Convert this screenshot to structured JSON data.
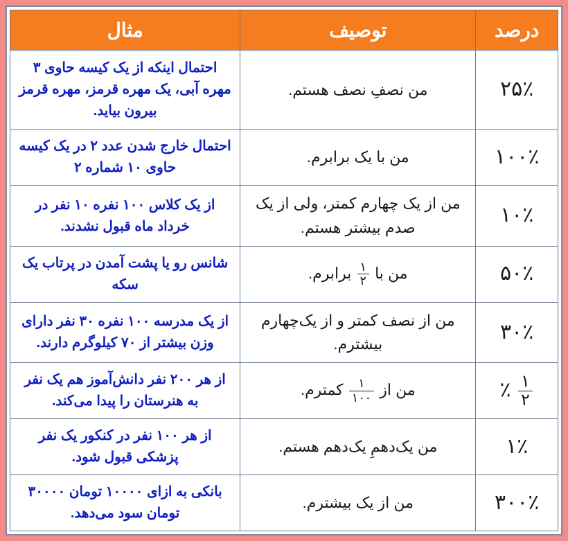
{
  "colors": {
    "outer_bg": "#f38b8b",
    "inner_border": "#7a8aa0",
    "header_bg": "#f57c1f",
    "header_fg": "#ffffff",
    "cell_border": "#6b7b91",
    "body_fg": "#1a1a1a",
    "example_fg": "#1020c0"
  },
  "headers": {
    "percent": "درصد",
    "description": "توصیف",
    "example": "مثال"
  },
  "rows": [
    {
      "percent_html": "۲۵٪",
      "desc_html": "من نصفِ نصف هستم.",
      "example_html": "احتمال اینکه از یک کیسه حاوی ۳ مهره آبی، یک مهره قرمز، مهره قرمز بیرون بیاید."
    },
    {
      "percent_html": "۱۰۰٪",
      "desc_html": "من با یک برابرم.",
      "example_html": "احتمال خارج شدن عدد ۲ در یک کیسه حاوی ۱۰ شماره ۲"
    },
    {
      "percent_html": "۱۰٪",
      "desc_html": "من از یک چهارم کمتر، ولی از یک صدم بیشتر هستم.",
      "example_html": "از یک کلاس ۱۰۰ نفره ۱۰ نفر در خرداد ماه قبول نشدند."
    },
    {
      "percent_html": "۵۰٪",
      "desc_html": "من با <span class=\"frac\"><span class=\"num\">۱</span><span class=\"den\">۲</span></span> برابرم.",
      "example_html": "شانس رو یا پشت آمدن در پرتاب یک سکه"
    },
    {
      "percent_html": "۳۰٪",
      "desc_html": "من از نصف کمتر و از یک‌چهارم بیشترم.",
      "example_html": "از یک مدرسه ۱۰۰ نفره ۳۰ نفر دارای وزن بیشتر از ۷۰ کیلوگرم دارند."
    },
    {
      "percent_html": "<span class=\"frac\"><span class=\"num\">۱</span><span class=\"den\">۲</span></span> ٪",
      "desc_html": "من از <span class=\"frac\"><span class=\"num\">۱</span><span class=\"den\">۱۰۰</span></span> کمترم.",
      "example_html": "از هر ۲۰۰ نفر دانش‌آموز هم یک نفر به هنرستان را پیدا می‌کند."
    },
    {
      "percent_html": "۱٪",
      "desc_html": "من یک‌دهمِ یک‌دهم هستم.",
      "example_html": "از هر ۱۰۰ نفر در کنکور یک نفر پزشکی قبول شود."
    },
    {
      "percent_html": "۳۰۰٪",
      "desc_html": "من از یک بیشترم.",
      "example_html": "بانکی به ازای ۱۰۰۰۰ تومان ۳۰۰۰۰ تومان سود می‌دهد."
    }
  ]
}
